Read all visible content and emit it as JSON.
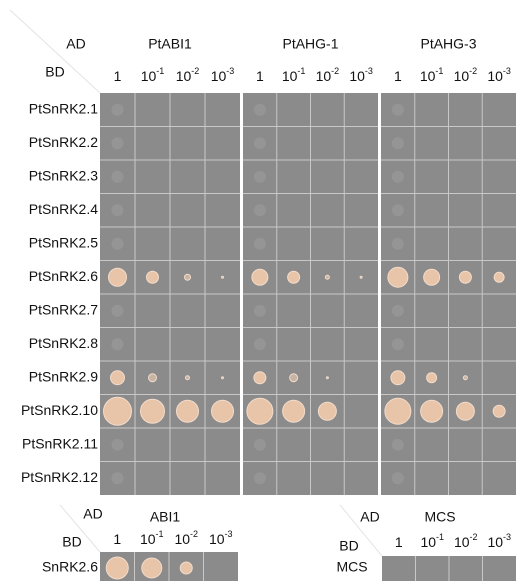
{
  "header": {
    "ad": "AD",
    "bd": "BD",
    "ad_groups": [
      "PtABI1",
      "PtAHG-1",
      "PtAHG-3"
    ],
    "dilutions": [
      {
        "base": "1"
      },
      {
        "base": "10",
        "sup": "-1"
      },
      {
        "base": "10",
        "sup": "-2"
      },
      {
        "base": "10",
        "sup": "-3"
      }
    ]
  },
  "rows": [
    "PtSnRK2.1",
    "PtSnRK2.2",
    "PtSnRK2.3",
    "PtSnRK2.4",
    "PtSnRK2.5",
    "PtSnRK2.6",
    "PtSnRK2.7",
    "PtSnRK2.8",
    "PtSnRK2.9",
    "PtSnRK2.10",
    "PtSnRK2.11",
    "PtSnRK2.12"
  ],
  "bottom_left": {
    "ad": "AD",
    "ad_group": "ABI1",
    "bd": "BD",
    "row": "SnRK2.6",
    "dilutions": [
      {
        "base": "1"
      },
      {
        "base": "10",
        "sup": "-1"
      },
      {
        "base": "10",
        "sup": "-2"
      },
      {
        "base": "10",
        "sup": "-3"
      }
    ]
  },
  "bottom_right": {
    "ad": "AD",
    "ad_group": "MCS",
    "bd": "BD",
    "row": "MCS",
    "dilutions": [
      {
        "base": "1"
      },
      {
        "base": "10",
        "sup": "-1"
      },
      {
        "base": "10",
        "sup": "-2"
      },
      {
        "base": "10",
        "sup": "-3"
      }
    ]
  }
}
